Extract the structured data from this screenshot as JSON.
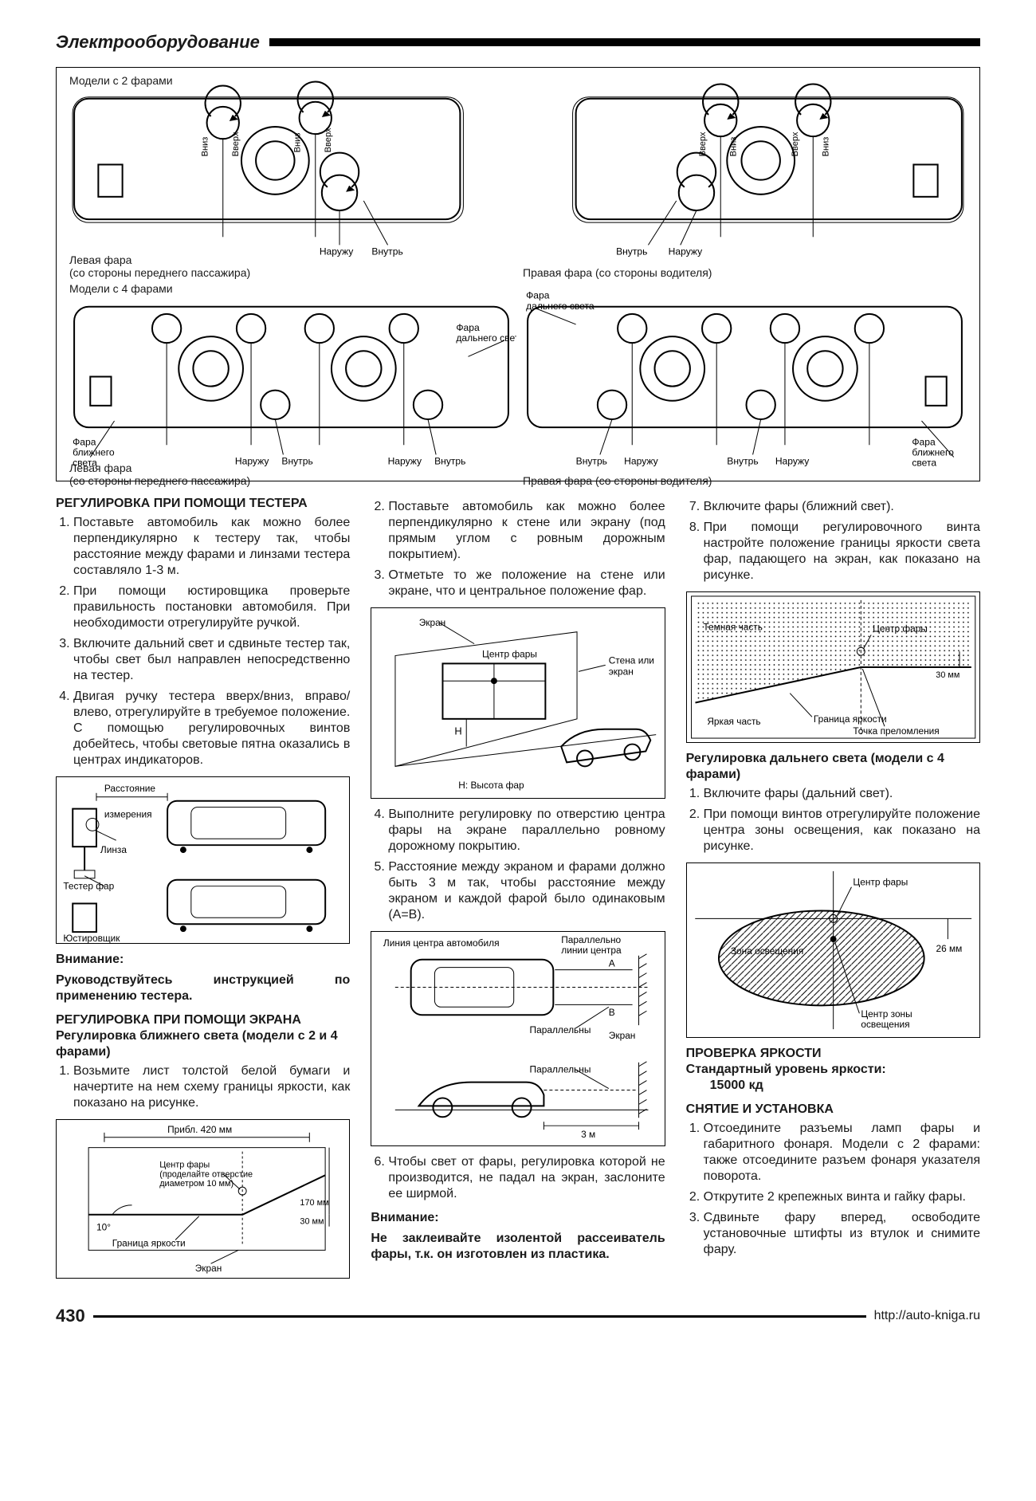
{
  "header": {
    "title": "Электрооборудование"
  },
  "topDiagram": {
    "row1_label": "Модели с 2 фарами",
    "row2_label": "Модели с 4 фарами",
    "left_caption1": "Левая фара",
    "left_caption2": "(со стороны переднего пассажира)",
    "right_caption": "Правая фара (со стороны водителя)",
    "arrows": {
      "up": "Вверх",
      "down": "Вниз",
      "out": "Наружу",
      "in": "Внутрь"
    },
    "high_beam": "Фара дальнего света",
    "low_beam": "Фара ближнего света"
  },
  "col1": {
    "h1": "РЕГУЛИРОВКА ПРИ ПОМОЩИ ТЕСТЕРА",
    "s1": [
      "Поставьте автомобиль как можно более перпендикулярно к тестеру так, чтобы расстояние между фарами и линзами тестера составляло 1-3 м.",
      "При помощи юстировщика проверьте правильность постановки автомобиля. При необходимости отрегулируйте ручкой.",
      "Включите дальний свет и сдвиньте тестер так, чтобы свет был направлен непосредственно на тестер.",
      "Двигая ручку тестера вверх/вниз, вправо/влево, отрегулируйте в требуемое положение. С помощью регулировочных винтов добейтесь, чтобы световые пятна оказались в центрах индикаторов."
    ],
    "fig1": {
      "dist": "Расстояние измерения",
      "lens": "Линза",
      "tester": "Тестер фар",
      "aligner": "Юстировщик"
    },
    "note_h": "Внимание:",
    "note": "Руководствуйтесь инструкцией по применению тестера.",
    "h2": "РЕГУЛИРОВКА ПРИ ПОМОЩИ ЭКРАНА",
    "h3": "Регулировка ближнего света (модели с 2 и 4 фарами)",
    "s2": [
      "Возьмите лист толстой белой бумаги и начертите на нем схему границы яркости, как показано на рисунке."
    ],
    "fig2": {
      "w": "Прибл. 420 мм",
      "center": "Центр фары (проделайте отверстие диаметром 10 мм)",
      "h170": "170 мм",
      "h30": "30 мм",
      "ang": "10°",
      "edge": "Граница яркости",
      "screen": "Экран"
    }
  },
  "col2": {
    "s1_start": 2,
    "s1": [
      "Поставьте автомобиль как можно более перпендикулярно к стене или экрану (под прямым углом с ровным дорожным покрытием).",
      "Отметьте то же положение на стене или экране, что и центральное положение фар."
    ],
    "fig1": {
      "screen": "Экран",
      "center": "Центр фары",
      "wall": "Стена или экран",
      "H": "H",
      "Hcap": "H: Высота фар"
    },
    "s2_start": 4,
    "s2": [
      "Выполните регулировку по отверстию центра фары на экране параллельно ровному дорожному покрытию.",
      "Расстояние между экраном и фарами должно быть 3 м так, чтобы расстояние между экраном и каждой фарой было одинаковым (A=B)."
    ],
    "fig2": {
      "centerline": "Линия центра автомобиля",
      "parallel_center": "Параллельно линии центра",
      "A": "A",
      "B": "B",
      "parallel": "Параллельны",
      "screen": "Экран",
      "dist": "3 м"
    },
    "s3_start": 6,
    "s3": [
      "Чтобы свет от фары, регулировка которой не производится, не падал на экран, заслоните ее ширмой."
    ],
    "note_h": "Внимание:",
    "note": "Не заклеивайте изолентой рассеиватель фары, т.к. он изготовлен из пластика."
  },
  "col3": {
    "s1_start": 7,
    "s1": [
      "Включите фары (ближний свет).",
      "При помощи регулировочного винта настройте положение границы яркости света фар, падающего на экран, как показано на рисунке."
    ],
    "fig1": {
      "dark": "Темная часть",
      "center": "Центр фары",
      "h30": "30 мм",
      "bright": "Яркая часть",
      "edge": "Граница яркости",
      "break": "Точка преломления"
    },
    "h1": "Регулировка дальнего света (модели с 4 фарами)",
    "s2": [
      "Включите фары (дальний свет).",
      "При помощи винтов отрегулируйте положение центра зоны освещения, как показано на рисунке."
    ],
    "fig2": {
      "center": "Центр фары",
      "zone": "Зона освещения",
      "h26": "26 мм",
      "zone_center": "Центр зоны освещения"
    },
    "h2": "ПРОВЕРКА ЯРКОСТИ",
    "h3": "Стандартный уровень яркости:",
    "val": "15000 кд",
    "h4": "СНЯТИЕ И УСТАНОВКА",
    "s3": [
      "Отсоедините разъемы ламп фары и габаритного фонаря. Модели с 2 фарами: также отсоедините разъем фонаря указателя поворота.",
      "Открутите 2 крепежных винта и гайку фары.",
      "Сдвиньте фару вперед, освободите установочные штифты из втулок и снимите фару."
    ]
  },
  "footer": {
    "page": "430",
    "url": "http://auto-kniga.ru"
  },
  "style": {
    "text_color": "#1a1a1a",
    "border_color": "#000000",
    "bg": "#ffffff",
    "body_fs": 16,
    "small_fs": 13
  }
}
